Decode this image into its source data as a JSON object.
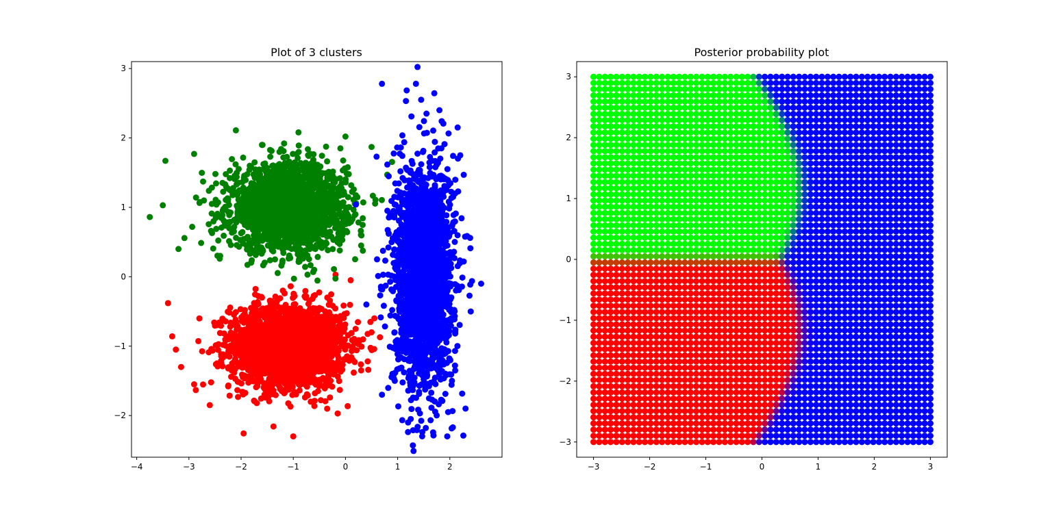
{
  "chart_data": [
    {
      "type": "scatter",
      "title": "Plot of 3 clusters",
      "xlim": [
        -4.1,
        3.0
      ],
      "ylim": [
        -2.6,
        3.1
      ],
      "xticks": [
        -4,
        -3,
        -2,
        -1,
        0,
        1,
        2
      ],
      "yticks": [
        -2,
        -1,
        0,
        1,
        2,
        3
      ],
      "grid": false,
      "series": [
        {
          "color": "#ff0000",
          "center": [
            -1.1,
            -1.0
          ],
          "std": [
            0.55,
            0.3
          ],
          "sample_points": [
            [
              -3.4,
              -0.38
            ],
            [
              -3.25,
              -1.05
            ],
            [
              -3.15,
              -1.3
            ],
            [
              -2.6,
              -1.85
            ],
            [
              -1.7,
              -1.82
            ],
            [
              -1.0,
              -2.3
            ],
            [
              -0.15,
              -1.97
            ],
            [
              -0.5,
              -0.45
            ],
            [
              -1.6,
              -0.3
            ],
            [
              0.1,
              -0.05
            ],
            [
              0.3,
              -1.35
            ],
            [
              -2.8,
              -0.6
            ],
            [
              -2.9,
              -1.55
            ],
            [
              0.5,
              -0.8
            ],
            [
              -1.2,
              -0.2
            ]
          ]
        },
        {
          "color": "#008000",
          "center": [
            -1.1,
            1.0
          ],
          "std": [
            0.55,
            0.3
          ],
          "sample_points": [
            [
              -3.75,
              0.86
            ],
            [
              -3.45,
              1.67
            ],
            [
              -3.5,
              1.03
            ],
            [
              -2.1,
              2.11
            ],
            [
              -0.9,
              2.08
            ],
            [
              0.0,
              2.02
            ],
            [
              0.5,
              1.87
            ],
            [
              0.8,
              1.47
            ],
            [
              -3.2,
              0.4
            ],
            [
              -2.4,
              0.3
            ],
            [
              -1.35,
              0.25
            ],
            [
              -0.6,
              0.1
            ],
            [
              0.3,
              0.45
            ],
            [
              -2.9,
              1.77
            ],
            [
              -1.6,
              1.9
            ]
          ]
        },
        {
          "color": "#0000ff",
          "center": [
            1.5,
            0.0
          ],
          "std": [
            0.28,
            0.8
          ],
          "sample_points": [
            [
              0.7,
              2.78
            ],
            [
              1.35,
              2.78
            ],
            [
              1.45,
              2.55
            ],
            [
              1.8,
              2.4
            ],
            [
              2.15,
              2.15
            ],
            [
              2.6,
              -0.1
            ],
            [
              2.4,
              -0.5
            ],
            [
              2.3,
              -1.9
            ],
            [
              1.95,
              -2.3
            ],
            [
              1.2,
              -2.1
            ],
            [
              0.9,
              -1.4
            ],
            [
              0.2,
              1.04
            ],
            [
              0.4,
              -0.4
            ],
            [
              0.7,
              -1.7
            ],
            [
              2.2,
              1.75
            ]
          ]
        }
      ]
    },
    {
      "type": "scatter",
      "title": "Posterior probability plot",
      "xlim": [
        -3.3,
        3.3
      ],
      "ylim": [
        -3.25,
        3.25
      ],
      "xticks": [
        -3,
        -2,
        -1,
        0,
        1,
        2,
        3
      ],
      "yticks": [
        -3,
        -2,
        -1,
        0,
        1,
        2,
        3
      ],
      "grid": false,
      "grid_range": [
        -3,
        3
      ],
      "grid_count": 60,
      "class_colors": [
        "#ff0000",
        "#00ff00",
        "#0000ff"
      ],
      "class_means": [
        [
          -1.1,
          -1.0
        ],
        [
          -1.1,
          1.0
        ],
        [
          1.5,
          0.0
        ]
      ],
      "class_std": [
        [
          0.55,
          0.3
        ],
        [
          0.55,
          0.3
        ],
        [
          0.28,
          0.8
        ]
      ]
    }
  ]
}
